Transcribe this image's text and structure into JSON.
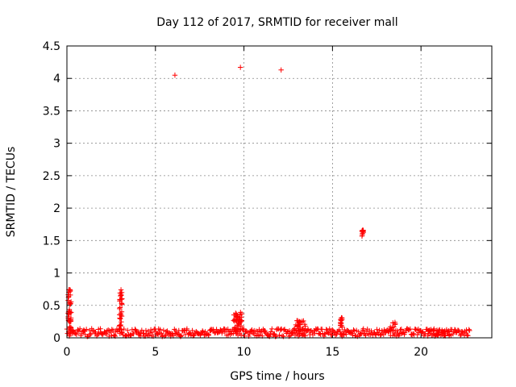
{
  "chart_data": {
    "type": "scatter",
    "title": "Day 112 of 2017, SRMTID for receiver mall",
    "xlabel": "GPS time / hours",
    "ylabel": "SRMTID / TECUs",
    "xlim": [
      0,
      24
    ],
    "ylim": [
      0,
      4.5
    ],
    "xticks": [
      0,
      5,
      10,
      15,
      20
    ],
    "yticks": [
      0,
      0.5,
      1,
      1.5,
      2,
      2.5,
      3,
      3.5,
      4,
      4.5
    ],
    "xtick_labels": [
      "0",
      "5",
      "10",
      "15",
      "20"
    ],
    "ytick_labels": [
      "0",
      "0.5",
      "1",
      "1.5",
      "2",
      "2.5",
      "3",
      "3.5",
      "4",
      "4.5"
    ],
    "grid": true,
    "marker": "+",
    "marker_color": "#ff0000",
    "series": [
      {
        "name": "SRMTID",
        "outliers": [
          [
            6.1,
            4.05
          ],
          [
            9.8,
            4.17
          ],
          [
            12.1,
            4.13
          ]
        ],
        "clusters": [
          {
            "x_center": 0.15,
            "x_spread": 0.1,
            "y_min": 0.1,
            "y_max": 0.75,
            "count": 40
          },
          {
            "x_center": 3.05,
            "x_spread": 0.08,
            "y_min": 0.12,
            "y_max": 0.75,
            "count": 30
          },
          {
            "x_center": 9.65,
            "x_spread": 0.25,
            "y_min": 0.12,
            "y_max": 0.4,
            "count": 40
          },
          {
            "x_center": 13.2,
            "x_spread": 0.35,
            "y_min": 0.1,
            "y_max": 0.27,
            "count": 30
          },
          {
            "x_center": 15.5,
            "x_spread": 0.05,
            "y_min": 0.15,
            "y_max": 0.32,
            "count": 15
          },
          {
            "x_center": 16.7,
            "x_spread": 0.05,
            "y_min": 1.55,
            "y_max": 1.68,
            "count": 12
          },
          {
            "x_center": 18.4,
            "x_spread": 0.15,
            "y_min": 0.1,
            "y_max": 0.25,
            "count": 10
          },
          {
            "x_center": 21.0,
            "x_spread": 0.6,
            "y_min": 0.04,
            "y_max": 0.12,
            "count": 25
          }
        ],
        "baseline": {
          "x_start": 0.0,
          "x_end": 22.8,
          "y_min": 0.02,
          "y_max": 0.14,
          "count": 500
        }
      }
    ]
  }
}
